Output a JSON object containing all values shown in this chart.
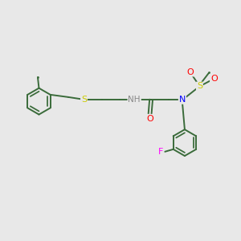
{
  "background_color": "#e8e8e8",
  "bond_color": "#3a6b3a",
  "line_width": 1.4,
  "atom_colors": {
    "S": "#cccc00",
    "NH": "#888888",
    "N": "#0000ff",
    "O": "#ff0000",
    "F": "#ff00ff",
    "C": "#3a6b3a"
  },
  "figsize": [
    3.0,
    3.0
  ],
  "dpi": 100
}
